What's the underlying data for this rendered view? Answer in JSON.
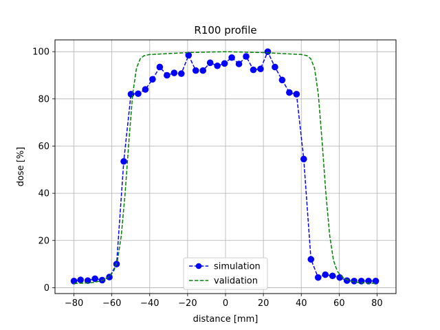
{
  "chart_data": {
    "type": "line",
    "title": "R100 profile",
    "xlabel": "distance [mm]",
    "ylabel": "dose [%]",
    "xlim": [
      -90,
      90
    ],
    "ylim": [
      -2.5,
      105
    ],
    "xticks": [
      -80,
      -60,
      -40,
      -20,
      0,
      20,
      40,
      60,
      80
    ],
    "yticks": [
      0,
      20,
      40,
      60,
      80,
      100
    ],
    "grid": true,
    "legend_position": "bottom-center",
    "series": [
      {
        "name": "simulation",
        "color": "#0000ff",
        "style": "dashed-with-circle-markers",
        "x": [
          -80,
          -76.5,
          -72.7,
          -68.9,
          -65.1,
          -61.3,
          -57.5,
          -53.7,
          -49.9,
          -46.1,
          -42.3,
          -38.5,
          -34.7,
          -30.9,
          -27.1,
          -23.3,
          -19.5,
          -15.7,
          -11.9,
          -8.1,
          -4.3,
          -0.5,
          3.3,
          7.1,
          10.9,
          14.7,
          18.5,
          22.3,
          26.1,
          29.9,
          33.7,
          37.5,
          41.3,
          45.1,
          48.9,
          52.7,
          56.5,
          60.3,
          64.1,
          67.9,
          71.7,
          75.5,
          79.3
        ],
        "y": [
          2.8,
          3.3,
          3.0,
          3.8,
          3.2,
          4.5,
          10.0,
          53.5,
          82.0,
          82.2,
          84.0,
          88.3,
          93.5,
          90.0,
          91.0,
          90.7,
          98.5,
          92.0,
          92.0,
          95.3,
          94.0,
          95.0,
          97.5,
          94.8,
          98.0,
          92.3,
          92.7,
          100.0,
          93.5,
          88.0,
          82.7,
          82.0,
          54.5,
          12.0,
          4.3,
          5.5,
          5.0,
          4.3,
          3.0,
          2.8,
          2.8,
          2.8,
          2.8
        ]
      },
      {
        "name": "validation",
        "color": "#008000",
        "style": "dashed",
        "x": [
          -80,
          -75,
          -70,
          -66,
          -63,
          -61,
          -59,
          -57,
          -55,
          -53,
          -51,
          -49,
          -47,
          -45,
          -43,
          -40,
          -35,
          -30,
          -20,
          -10,
          0,
          10,
          20,
          30,
          35,
          40,
          43,
          45,
          47,
          49,
          51,
          53,
          55,
          57,
          59,
          61,
          63,
          66,
          70,
          75,
          80
        ],
        "y": [
          1.8,
          1.9,
          2.2,
          2.8,
          3.8,
          5.0,
          7.0,
          11.5,
          22.0,
          40.0,
          62.0,
          82.0,
          93.0,
          97.0,
          98.3,
          98.8,
          99.0,
          99.2,
          99.6,
          99.8,
          100.0,
          99.8,
          99.6,
          99.2,
          99.0,
          98.8,
          98.3,
          97.0,
          93.0,
          82.0,
          62.0,
          40.0,
          22.0,
          11.5,
          7.0,
          5.0,
          3.8,
          2.8,
          2.2,
          1.9,
          1.8
        ]
      }
    ]
  }
}
